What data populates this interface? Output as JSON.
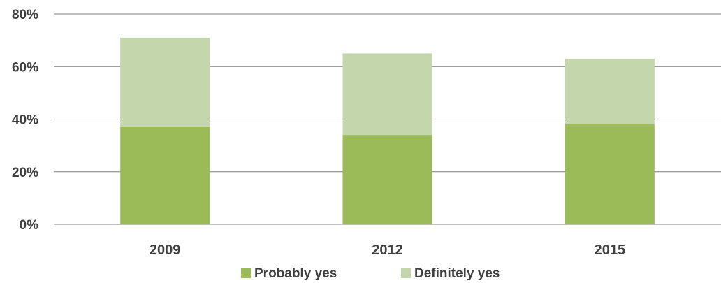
{
  "chart_data": {
    "type": "bar",
    "stacked": true,
    "categories": [
      "2009",
      "2012",
      "2015"
    ],
    "series": [
      {
        "name": "Probably yes",
        "values": [
          37,
          34,
          38
        ],
        "color": "#9bbb59"
      },
      {
        "name": "Definitely yes",
        "values": [
          34,
          31,
          25
        ],
        "color": "#c4d6ab"
      }
    ],
    "ylim": [
      0,
      80
    ],
    "yticks": [
      "0%",
      "20%",
      "40%",
      "60%",
      "80%"
    ],
    "ytick_values": [
      0,
      20,
      40,
      60,
      80
    ],
    "grid": true,
    "legend_position": "bottom"
  }
}
